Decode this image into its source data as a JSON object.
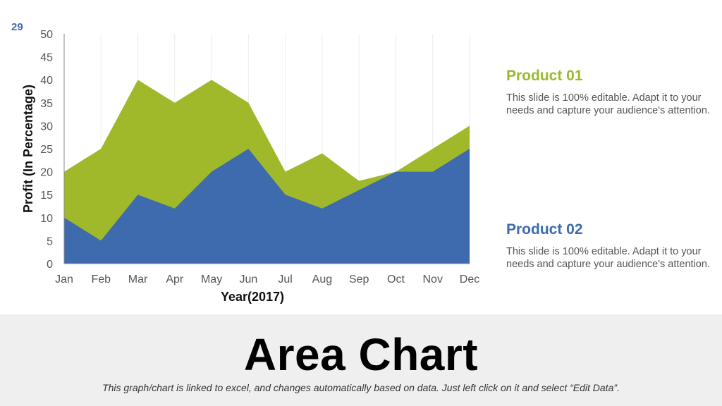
{
  "slide_number": "29",
  "chart_data": {
    "type": "area",
    "categories": [
      "Jan",
      "Feb",
      "Mar",
      "Apr",
      "May",
      "Jun",
      "Jul",
      "Aug",
      "Sep",
      "Oct",
      "Nov",
      "Dec"
    ],
    "series": [
      {
        "name": "Product 01",
        "color": "#a0b92b",
        "values": [
          20,
          25,
          40,
          35,
          40,
          35,
          20,
          24,
          18,
          20,
          25,
          30
        ]
      },
      {
        "name": "Product 02",
        "color": "#3e6aae",
        "values": [
          10,
          5,
          15,
          12,
          20,
          25,
          15,
          12,
          16,
          20,
          20,
          25
        ]
      }
    ],
    "xlabel": "Year(2017)",
    "ylabel": "Profit (In Percentage)",
    "ylim": [
      0,
      50
    ],
    "yticks": [
      0,
      5,
      10,
      15,
      20,
      25,
      30,
      35,
      40,
      45,
      50
    ],
    "grid": "vertical gridlines",
    "legend": "right"
  },
  "legend": {
    "product1": {
      "title": "Product 01",
      "color": "#9aba2c",
      "description": "This slide is 100% editable. Adapt it to your needs and capture your audience's attention."
    },
    "product2": {
      "title": "Product 02",
      "color": "#3d6aaf",
      "description": "This slide is 100% editable. Adapt it to your needs and capture your audience's attention."
    }
  },
  "footer": {
    "title": "Area Chart",
    "caption": "This graph/chart is linked to excel, and changes automatically based on data. Just left click on it and select “Edit Data”."
  }
}
